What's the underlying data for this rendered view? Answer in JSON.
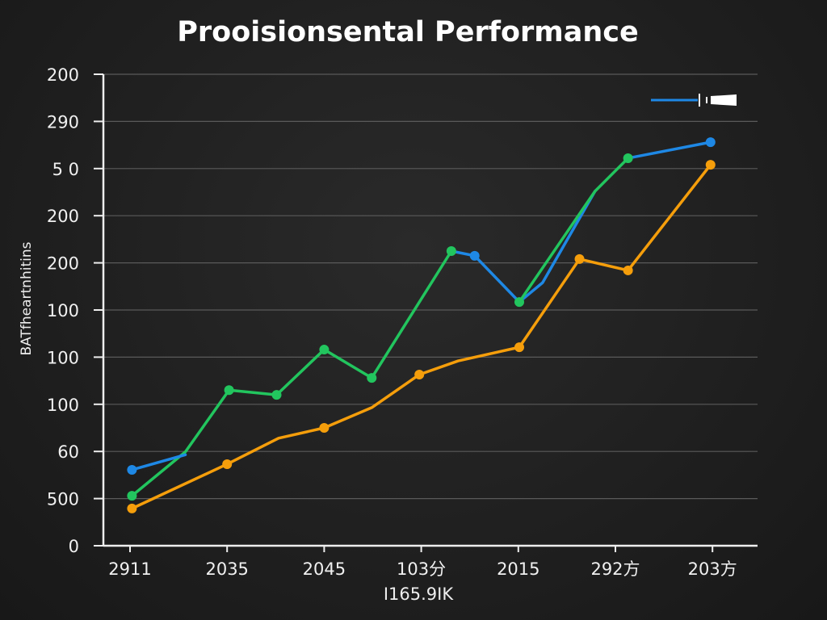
{
  "chart_data": {
    "type": "line",
    "title": "Prooisionsental Performance",
    "ylabel": "BATfheartnhitins",
    "xlabel": "I165.9IK",
    "x_tick_labels": [
      "2911",
      "2035",
      "2045",
      "103分",
      "2015",
      "292方",
      "203方"
    ],
    "y_tick_labels": [
      "0",
      "500",
      "60",
      "100",
      "100",
      "100",
      "200",
      "200",
      "5 0",
      "290",
      "200"
    ],
    "x_units": "category index along x axis (0 = first tick)",
    "y_units": "gridline index (0 = bottom tick)",
    "xlim": [
      -0.3,
      6.45
    ],
    "ylim": [
      0,
      10
    ],
    "grid": true,
    "legend": {
      "placement": "top-right",
      "entries": [
        {
          "color": "#1e88e5"
        }
      ]
    },
    "series": [
      {
        "color": "#22c55e",
        "points": [
          [
            0.02,
            1.06,
            1
          ],
          [
            0.57,
            1.99,
            0
          ],
          [
            1.02,
            3.3,
            1
          ],
          [
            1.51,
            3.2,
            1
          ],
          [
            2.0,
            4.16,
            1
          ],
          [
            2.49,
            3.56,
            1
          ],
          [
            3.31,
            6.25,
            1
          ]
        ]
      },
      {
        "color": "#1e88e5",
        "points": [
          [
            0.02,
            1.61,
            1
          ],
          [
            0.57,
            1.93,
            0
          ]
        ]
      },
      {
        "color": "#1e88e5",
        "points": [
          [
            3.31,
            6.25,
            0
          ],
          [
            3.55,
            6.15,
            1
          ],
          [
            4.01,
            5.17,
            0
          ],
          [
            4.25,
            5.58,
            0
          ],
          [
            4.79,
            7.52,
            0
          ]
        ]
      },
      {
        "color": "#22c55e",
        "points": [
          [
            4.01,
            5.17,
            1
          ],
          [
            4.79,
            7.52,
            0
          ],
          [
            5.13,
            8.22,
            1
          ]
        ]
      },
      {
        "color": "#1e88e5",
        "points": [
          [
            5.13,
            8.22,
            0
          ],
          [
            5.98,
            8.56,
            1
          ]
        ]
      },
      {
        "color": "#f59e0b",
        "points": [
          [
            0.02,
            0.79,
            1
          ],
          [
            1.0,
            1.73,
            1
          ],
          [
            1.53,
            2.28,
            0
          ],
          [
            2.0,
            2.5,
            1
          ],
          [
            2.49,
            2.93,
            0
          ],
          [
            2.98,
            3.63,
            1
          ],
          [
            3.38,
            3.92,
            0
          ],
          [
            4.01,
            4.21,
            1
          ],
          [
            4.63,
            6.08,
            1
          ],
          [
            5.13,
            5.84,
            1
          ],
          [
            5.98,
            8.08,
            1
          ]
        ]
      }
    ]
  }
}
